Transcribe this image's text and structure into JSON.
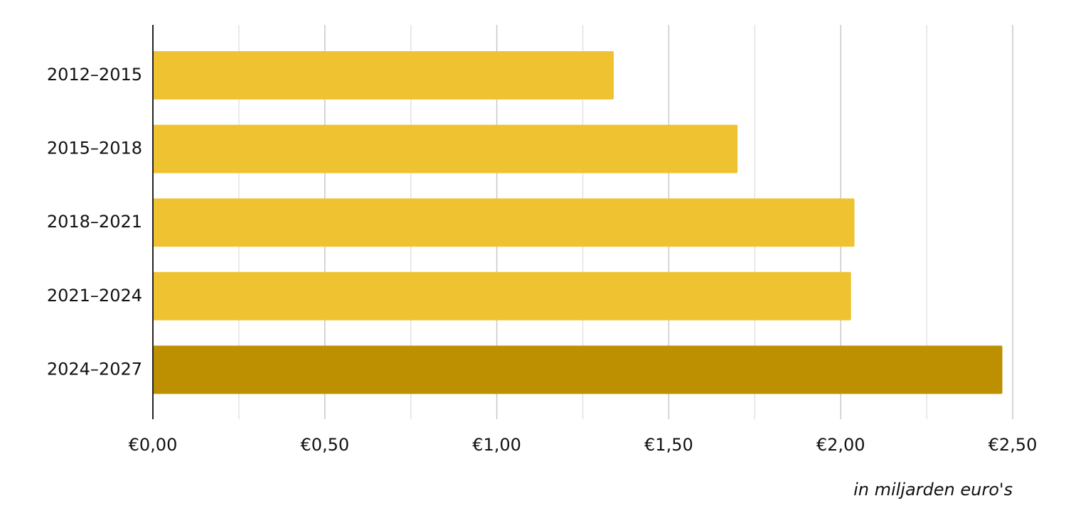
{
  "chart_data": {
    "type": "bar",
    "orientation": "horizontal",
    "categories": [
      "2012–2015",
      "2015–2018",
      "2018–2021",
      "2021–2024",
      "2024–2027"
    ],
    "values": [
      1.34,
      1.7,
      2.04,
      2.03,
      2.47
    ],
    "xlim": [
      0,
      2.5
    ],
    "xticks": [
      0,
      0.5,
      1.0,
      1.5,
      2.0,
      2.5
    ],
    "xtick_labels": [
      "€0,00",
      "€0,50",
      "€1,00",
      "€1,50",
      "€2,00",
      "€2,50"
    ],
    "minor_gridlines": true,
    "grid": true,
    "unit_label": "in miljarden euro's",
    "colors": {
      "bar": "#efc232",
      "highlight_bar": "#bd9002",
      "major_grid": "#c8c8c8",
      "minor_grid": "#e3e3e3",
      "axis": "#222222"
    },
    "highlight_index": 4
  }
}
